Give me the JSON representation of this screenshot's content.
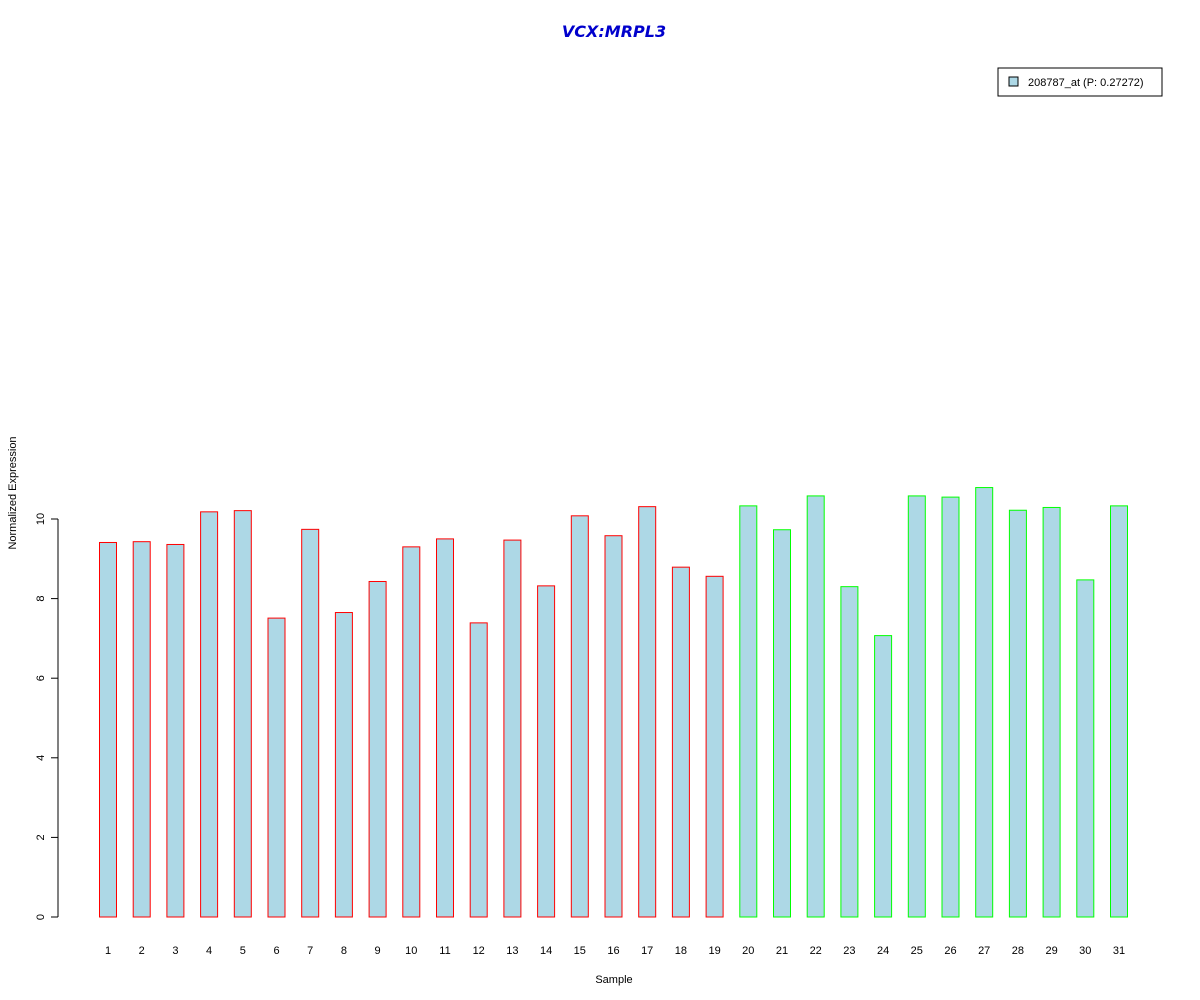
{
  "chart_data": {
    "type": "bar",
    "title": "VCX:MRPL3",
    "xlabel": "Sample",
    "ylabel": "Normalized Expression",
    "ylim": [
      0,
      10.8
    ],
    "yticks": [
      "0",
      "2",
      "4",
      "6",
      "8",
      "10"
    ],
    "categories": [
      "1",
      "2",
      "3",
      "4",
      "5",
      "6",
      "7",
      "8",
      "9",
      "10",
      "11",
      "12",
      "13",
      "14",
      "15",
      "16",
      "17",
      "18",
      "19",
      "20",
      "21",
      "22",
      "23",
      "24",
      "25",
      "26",
      "27",
      "28",
      "29",
      "30",
      "31"
    ],
    "values": [
      9.41,
      9.43,
      9.36,
      10.18,
      10.21,
      7.51,
      9.74,
      7.65,
      8.43,
      9.3,
      9.5,
      7.39,
      9.47,
      8.32,
      10.08,
      9.58,
      10.31,
      8.79,
      8.56,
      10.33,
      9.73,
      10.58,
      8.3,
      7.07,
      10.58,
      10.55,
      10.79,
      10.22,
      10.29,
      8.47,
      10.33
    ],
    "fill_color": "#add8e6",
    "group_border_colors": [
      "#ff0000",
      "#ff0000",
      "#ff0000",
      "#ff0000",
      "#ff0000",
      "#ff0000",
      "#ff0000",
      "#ff0000",
      "#ff0000",
      "#ff0000",
      "#ff0000",
      "#ff0000",
      "#ff0000",
      "#ff0000",
      "#ff0000",
      "#ff0000",
      "#ff0000",
      "#ff0000",
      "#ff0000",
      "#00ff00",
      "#00ff00",
      "#00ff00",
      "#00ff00",
      "#00ff00",
      "#00ff00",
      "#00ff00",
      "#00ff00",
      "#00ff00",
      "#00ff00",
      "#00ff00",
      "#00ff00"
    ],
    "grid": false,
    "legend": {
      "position": "top-right",
      "entries": [
        "208787_at (P: 0.27272)"
      ]
    }
  }
}
